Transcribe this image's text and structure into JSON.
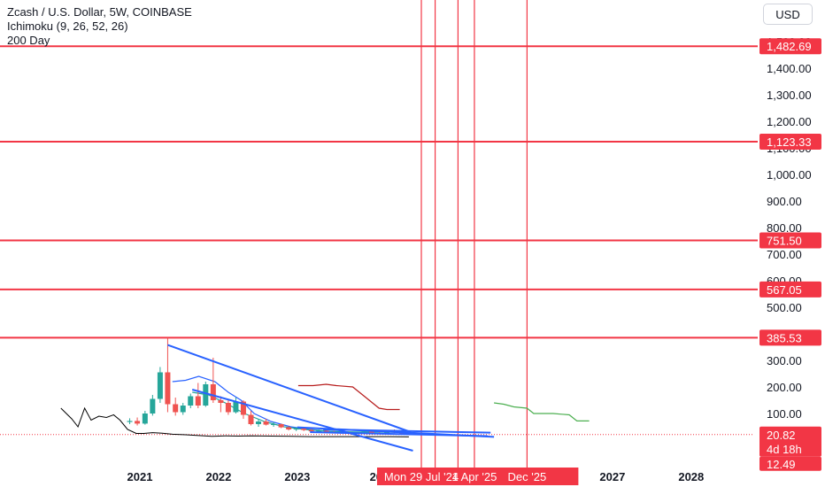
{
  "header": {
    "symbol_line": "Zcash / U.S. Dollar, 5W, COINBASE",
    "indicator_1": "Ichimoku (9, 26, 52, 26)",
    "indicator_2": "200 Day"
  },
  "currency_button": "USD",
  "colors": {
    "up": "#26a69a",
    "down": "#ef5350",
    "hline": "#f23645",
    "trendline": "#2962ff",
    "ichimoku_red": "#b71c1c",
    "ichimoku_green": "#4caf50",
    "ichimoku_blue": "#2962ff",
    "ma_black": "#000000"
  },
  "chart_data": {
    "type": "candlestick",
    "symbol": "Zcash / U.S. Dollar",
    "interval": "5W",
    "exchange": "COINBASE",
    "y_scale": "linear",
    "ylim": [
      -90,
      1560
    ],
    "xlim": [
      "2020-01-01",
      "2028-12-31"
    ],
    "y_ticks": [
      100,
      200,
      300,
      400,
      500,
      600,
      700,
      800,
      900,
      1000,
      1100,
      1200,
      1300,
      1400,
      1500
    ],
    "y_tick_labels": [
      "100.00",
      "200.00",
      "300.00",
      "400.00",
      "500.00",
      "600.00",
      "700.00",
      "800.00",
      "900.00",
      "1,000.00",
      "1,100.00",
      "1,200.00",
      "1,300.00",
      "1,400.00",
      "1,500.00"
    ],
    "x_ticks": [
      {
        "date": "2021-01-01",
        "label": "2021"
      },
      {
        "date": "2022-01-01",
        "label": "2022"
      },
      {
        "date": "2023-01-01",
        "label": "2023"
      },
      {
        "date": "2024-01-01",
        "label": "20"
      },
      {
        "date": "2027-01-01",
        "label": "2027"
      },
      {
        "date": "2028-01-01",
        "label": "2028"
      }
    ],
    "horizontal_levels": [
      {
        "value": 1482.69,
        "label": "1,482.69"
      },
      {
        "value": 1123.33,
        "label": "1,123.33"
      },
      {
        "value": 751.5,
        "label": "751.50"
      },
      {
        "value": 567.05,
        "label": "567.05"
      },
      {
        "value": 385.53,
        "label": "385.53"
      }
    ],
    "vertical_lines": [
      {
        "date": "2024-07-29"
      },
      {
        "date": "2024-10-01"
      },
      {
        "date": "2025-01-15"
      },
      {
        "date": "2025-04-01"
      },
      {
        "date": "2025-12-01"
      }
    ],
    "date_labels": [
      {
        "date": "2024-07-29",
        "label": "Mon 29 Jul '24"
      },
      {
        "date": "2025-04-01",
        "label": "1 Apr '25"
      },
      {
        "date": "2025-12-01",
        "label": "Dec '25"
      }
    ],
    "last_price": {
      "value": 20.82,
      "label": "20.82",
      "countdown": "4d 18h"
    },
    "price_label_low": "12.49",
    "candles": [
      {
        "date": "2020-11-15",
        "open": 68,
        "high": 82,
        "low": 60,
        "close": 72
      },
      {
        "date": "2020-12-20",
        "open": 72,
        "high": 85,
        "low": 55,
        "close": 62
      },
      {
        "date": "2021-01-25",
        "open": 62,
        "high": 110,
        "low": 58,
        "close": 100
      },
      {
        "date": "2021-03-01",
        "open": 100,
        "high": 170,
        "low": 92,
        "close": 155
      },
      {
        "date": "2021-04-05",
        "open": 155,
        "high": 275,
        "low": 140,
        "close": 255
      },
      {
        "date": "2021-05-10",
        "open": 255,
        "high": 385,
        "low": 105,
        "close": 135
      },
      {
        "date": "2021-06-15",
        "open": 135,
        "high": 160,
        "low": 92,
        "close": 105
      },
      {
        "date": "2021-07-20",
        "open": 105,
        "high": 140,
        "low": 95,
        "close": 130
      },
      {
        "date": "2021-08-24",
        "open": 130,
        "high": 175,
        "low": 120,
        "close": 165
      },
      {
        "date": "2021-09-28",
        "open": 165,
        "high": 215,
        "low": 120,
        "close": 130
      },
      {
        "date": "2021-11-02",
        "open": 130,
        "high": 220,
        "low": 125,
        "close": 210
      },
      {
        "date": "2021-12-07",
        "open": 210,
        "high": 310,
        "low": 140,
        "close": 150
      },
      {
        "date": "2022-01-11",
        "open": 150,
        "high": 165,
        "low": 105,
        "close": 140
      },
      {
        "date": "2022-02-15",
        "open": 140,
        "high": 150,
        "low": 95,
        "close": 105
      },
      {
        "date": "2022-03-22",
        "open": 105,
        "high": 160,
        "low": 100,
        "close": 145
      },
      {
        "date": "2022-04-26",
        "open": 145,
        "high": 150,
        "low": 80,
        "close": 95
      },
      {
        "date": "2022-05-31",
        "open": 95,
        "high": 110,
        "low": 55,
        "close": 60
      },
      {
        "date": "2022-07-05",
        "open": 60,
        "high": 78,
        "low": 50,
        "close": 70
      },
      {
        "date": "2022-08-09",
        "open": 70,
        "high": 80,
        "low": 55,
        "close": 58
      },
      {
        "date": "2022-09-13",
        "open": 58,
        "high": 68,
        "low": 50,
        "close": 60
      },
      {
        "date": "2022-10-18",
        "open": 60,
        "high": 62,
        "low": 45,
        "close": 48
      },
      {
        "date": "2022-11-22",
        "open": 48,
        "high": 52,
        "low": 36,
        "close": 40
      },
      {
        "date": "2022-12-27",
        "open": 40,
        "high": 48,
        "low": 34,
        "close": 43
      },
      {
        "date": "2023-01-31",
        "open": 43,
        "high": 46,
        "low": 34,
        "close": 38
      },
      {
        "date": "2023-03-07",
        "open": 38,
        "high": 42,
        "low": 30,
        "close": 33
      },
      {
        "date": "2023-04-11",
        "open": 33,
        "high": 40,
        "low": 30,
        "close": 35
      },
      {
        "date": "2023-05-16",
        "open": 35,
        "high": 38,
        "low": 28,
        "close": 30
      },
      {
        "date": "2023-06-20",
        "open": 30,
        "high": 35,
        "low": 25,
        "close": 28
      },
      {
        "date": "2023-07-25",
        "open": 28,
        "high": 33,
        "low": 24,
        "close": 29
      },
      {
        "date": "2023-08-29",
        "open": 29,
        "high": 31,
        "low": 23,
        "close": 25
      },
      {
        "date": "2023-10-03",
        "open": 25,
        "high": 30,
        "low": 24,
        "close": 28
      },
      {
        "date": "2023-11-07",
        "open": 28,
        "high": 38,
        "low": 26,
        "close": 33
      },
      {
        "date": "2023-12-12",
        "open": 33,
        "high": 36,
        "low": 24,
        "close": 26
      },
      {
        "date": "2024-01-16",
        "open": 26,
        "high": 30,
        "low": 22,
        "close": 24
      },
      {
        "date": "2024-02-20",
        "open": 24,
        "high": 36,
        "low": 22,
        "close": 32
      },
      {
        "date": "2024-03-26",
        "open": 32,
        "high": 40,
        "low": 26,
        "close": 28
      },
      {
        "date": "2024-04-30",
        "open": 28,
        "high": 30,
        "low": 20,
        "close": 22
      },
      {
        "date": "2024-06-04",
        "open": 22,
        "high": 26,
        "low": 18,
        "close": 21
      }
    ],
    "series": [
      {
        "kind": "ma",
        "color": "#000000",
        "points": [
          [
            "2020-01-01",
            120
          ],
          [
            "2020-02-20",
            80
          ],
          [
            "2020-03-20",
            50
          ],
          [
            "2020-04-20",
            120
          ],
          [
            "2020-05-20",
            75
          ],
          [
            "2020-06-25",
            90
          ],
          [
            "2020-07-30",
            85
          ],
          [
            "2020-09-01",
            95
          ],
          [
            "2020-10-01",
            75
          ],
          [
            "2020-11-05",
            40
          ],
          [
            "2020-12-15",
            25
          ],
          [
            "2021-01-20",
            25
          ],
          [
            "2021-03-01",
            28
          ],
          [
            "2021-04-15",
            26
          ],
          [
            "2021-06-01",
            22
          ],
          [
            "2021-08-01",
            20
          ],
          [
            "2021-10-01",
            17
          ],
          [
            "2021-12-01",
            14
          ],
          [
            "2022-02-01",
            16
          ],
          [
            "2022-04-01",
            15
          ],
          [
            "2022-06-01",
            16
          ],
          [
            "2022-09-01",
            15
          ],
          [
            "2022-12-01",
            14
          ],
          [
            "2023-03-01",
            13
          ],
          [
            "2023-06-01",
            13
          ],
          [
            "2023-09-01",
            13
          ],
          [
            "2023-12-01",
            13
          ],
          [
            "2024-03-01",
            13
          ],
          [
            "2024-06-01",
            12
          ]
        ]
      },
      {
        "kind": "ichimoku-line",
        "color": "#2962ff",
        "points": [
          [
            "2021-06-01",
            220
          ],
          [
            "2021-08-01",
            225
          ],
          [
            "2021-10-01",
            240
          ],
          [
            "2021-12-15",
            220
          ],
          [
            "2022-02-15",
            180
          ],
          [
            "2022-04-15",
            150
          ],
          [
            "2022-06-15",
            100
          ],
          [
            "2022-09-01",
            70
          ],
          [
            "2022-12-01",
            50
          ],
          [
            "2023-03-01",
            40
          ],
          [
            "2023-06-01",
            33
          ],
          [
            "2023-09-01",
            30
          ],
          [
            "2024-01-01",
            30
          ],
          [
            "2024-05-01",
            32
          ]
        ]
      },
      {
        "kind": "ichimoku-line",
        "color": "#26a69a",
        "points": [
          [
            "2021-09-01",
            180
          ],
          [
            "2021-11-15",
            170
          ],
          [
            "2022-02-01",
            140
          ],
          [
            "2022-05-01",
            100
          ],
          [
            "2022-08-01",
            70
          ],
          [
            "2022-11-01",
            50
          ],
          [
            "2023-02-01",
            40
          ],
          [
            "2023-06-01",
            33
          ],
          [
            "2023-10-01",
            30
          ],
          [
            "2024-02-01",
            30
          ],
          [
            "2024-06-01",
            29
          ]
        ]
      },
      {
        "kind": "ichimoku-span",
        "color": "#b71c1c",
        "points": [
          [
            "2023-01-05",
            205
          ],
          [
            "2023-03-15",
            205
          ],
          [
            "2023-05-15",
            210
          ],
          [
            "2023-07-01",
            205
          ],
          [
            "2023-09-15",
            200
          ],
          [
            "2023-11-15",
            160
          ],
          [
            "2024-01-15",
            120
          ],
          [
            "2024-02-20",
            115
          ],
          [
            "2024-04-20",
            115
          ]
        ]
      },
      {
        "kind": "ichimoku-span",
        "color": "#4caf50",
        "points": [
          [
            "2025-07-01",
            140
          ],
          [
            "2025-08-15",
            135
          ],
          [
            "2025-10-01",
            125
          ],
          [
            "2025-12-01",
            120
          ],
          [
            "2026-01-01",
            100
          ],
          [
            "2026-04-01",
            100
          ],
          [
            "2026-06-15",
            95
          ],
          [
            "2026-07-20",
            72
          ],
          [
            "2026-09-15",
            72
          ]
        ]
      }
    ],
    "trendlines": [
      {
        "from": [
          "2021-05-10",
          358
        ],
        "to": [
          "2024-06-10",
          30
        ]
      },
      {
        "from": [
          "2021-09-01",
          190
        ],
        "to": [
          "2024-06-20",
          -40
        ]
      },
      {
        "from": [
          "2023-01-01",
          48
        ],
        "to": [
          "2025-07-01",
          12
        ]
      },
      {
        "from": [
          "2023-05-01",
          40
        ],
        "to": [
          "2025-06-15",
          28
        ]
      },
      {
        "from": [
          "2023-03-01",
          30
        ],
        "to": [
          "2025-06-01",
          15
        ]
      }
    ]
  }
}
